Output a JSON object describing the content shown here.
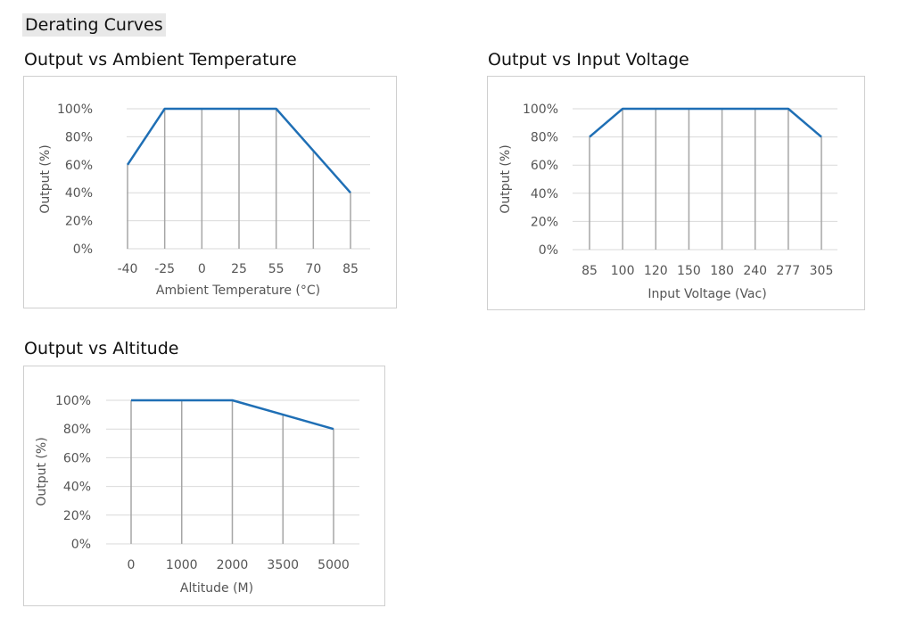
{
  "section_title": "Derating Curves",
  "chart_data": [
    {
      "type": "line",
      "title": "Output vs Ambient Temperature",
      "xlabel": "Ambient Temperature (°C)",
      "ylabel": "Output (%)",
      "categories": [
        "-40",
        "-25",
        "0",
        "25",
        "55",
        "70",
        "85"
      ],
      "yticks": [
        "0%",
        "20%",
        "40%",
        "60%",
        "80%",
        "100%"
      ],
      "ylim": [
        0,
        100
      ],
      "series": [
        {
          "values": [
            60,
            100,
            100,
            100,
            100,
            70,
            40
          ]
        }
      ],
      "grid": "horizontal",
      "line_color": "#1f6fb5",
      "drop_line_color": "#a6a6a6"
    },
    {
      "type": "line",
      "title": "Output vs Input Voltage",
      "xlabel": "Input Voltage (Vac)",
      "ylabel": "Output (%)",
      "categories": [
        "85",
        "100",
        "120",
        "150",
        "180",
        "240",
        "277",
        "305"
      ],
      "yticks": [
        "0%",
        "20%",
        "40%",
        "60%",
        "80%",
        "100%"
      ],
      "ylim": [
        0,
        100
      ],
      "series": [
        {
          "values": [
            80,
            100,
            100,
            100,
            100,
            100,
            100,
            80
          ]
        }
      ],
      "grid": "horizontal",
      "line_color": "#1f6fb5",
      "drop_line_color": "#a6a6a6"
    },
    {
      "type": "line",
      "title": "Output vs Altitude",
      "xlabel": "Altitude (M)",
      "ylabel": "Output (%)",
      "categories": [
        "0",
        "1000",
        "2000",
        "3500",
        "5000"
      ],
      "yticks": [
        "0%",
        "20%",
        "40%",
        "60%",
        "80%",
        "100%"
      ],
      "ylim": [
        0,
        100
      ],
      "series": [
        {
          "values": [
            100,
            100,
            100,
            90,
            80
          ]
        }
      ],
      "grid": "horizontal",
      "line_color": "#1f6fb5",
      "drop_line_color": "#a6a6a6"
    }
  ]
}
